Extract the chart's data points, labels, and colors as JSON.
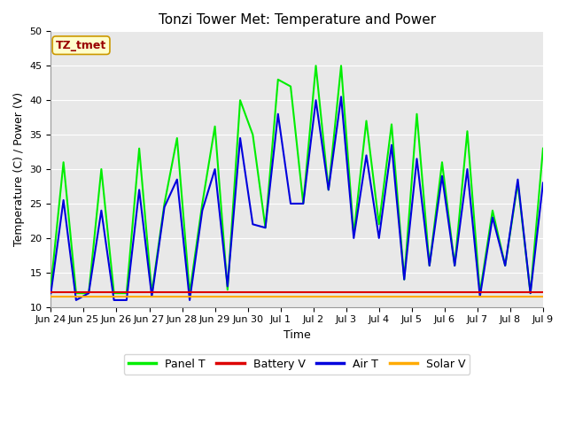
{
  "title": "Tonzi Tower Met: Temperature and Power",
  "xlabel": "Time",
  "ylabel": "Temperature (C) / Power (V)",
  "ylim": [
    10,
    50
  ],
  "annotation": "TZ_tmet",
  "fig_facecolor": "#ffffff",
  "plot_facecolor": "#e8e8e8",
  "legend_labels": [
    "Panel T",
    "Battery V",
    "Air T",
    "Solar V"
  ],
  "legend_colors": [
    "#00ee00",
    "#dd0000",
    "#0000dd",
    "#ffaa00"
  ],
  "xtick_labels": [
    "Jun 24",
    "Jun 25",
    "Jun 26",
    "Jun 27",
    "Jun 28",
    "Jun 29",
    "Jun 30",
    "Jul 1",
    "Jul 2",
    "Jul 3",
    "Jul 4",
    "Jul 5",
    "Jul 6",
    "Jul 7",
    "Jul 8",
    "Jul 9"
  ],
  "panel_t": [
    13,
    31,
    12,
    12,
    30,
    12,
    12,
    33,
    12,
    25,
    34.5,
    12,
    25,
    36.2,
    12.5,
    40,
    35,
    21.5,
    43,
    42,
    25,
    45,
    27,
    45,
    20.5,
    37,
    22,
    36.5,
    14,
    38,
    16,
    31,
    16,
    35.5,
    12,
    24,
    16,
    28,
    12,
    33
  ],
  "air_t": [
    12,
    25.5,
    11,
    12,
    24,
    11,
    11,
    27,
    11.5,
    24.5,
    28.5,
    11,
    24,
    30,
    13,
    34.5,
    22,
    21.5,
    38,
    25,
    25,
    40,
    27,
    40.5,
    20,
    32,
    20,
    33.5,
    14,
    31.5,
    16,
    29,
    16,
    30,
    11.5,
    23,
    16,
    28.5,
    12,
    28
  ],
  "battery_v": [
    12.2,
    12.2,
    12.2,
    12.2,
    12.2,
    12.2,
    12.2,
    12.2,
    12.2,
    12.2,
    12.2,
    12.2,
    12.2,
    12.2,
    12.2,
    12.2,
    12.2,
    12.2,
    12.2,
    12.2,
    12.2,
    12.2,
    12.2,
    12.2,
    12.2,
    12.2,
    12.2,
    12.2,
    12.2,
    12.2,
    12.2,
    12.2,
    12.2,
    12.2,
    12.2,
    12.2,
    12.2,
    12.2,
    12.2,
    12.2
  ],
  "solar_v": [
    11.5,
    11.5,
    11.5,
    11.5,
    11.5,
    11.5,
    11.5,
    11.5,
    11.5,
    11.5,
    11.5,
    11.5,
    11.5,
    11.5,
    11.5,
    11.5,
    11.5,
    11.5,
    11.5,
    11.5,
    11.5,
    11.5,
    11.5,
    11.5,
    11.5,
    11.5,
    11.5,
    11.5,
    11.5,
    11.5,
    11.5,
    11.5,
    11.5,
    11.5,
    11.5,
    11.5,
    11.5,
    11.5,
    11.5,
    11.5
  ],
  "title_fontsize": 11,
  "axis_fontsize": 9,
  "tick_fontsize": 8,
  "legend_fontsize": 9,
  "linewidth": 1.5
}
